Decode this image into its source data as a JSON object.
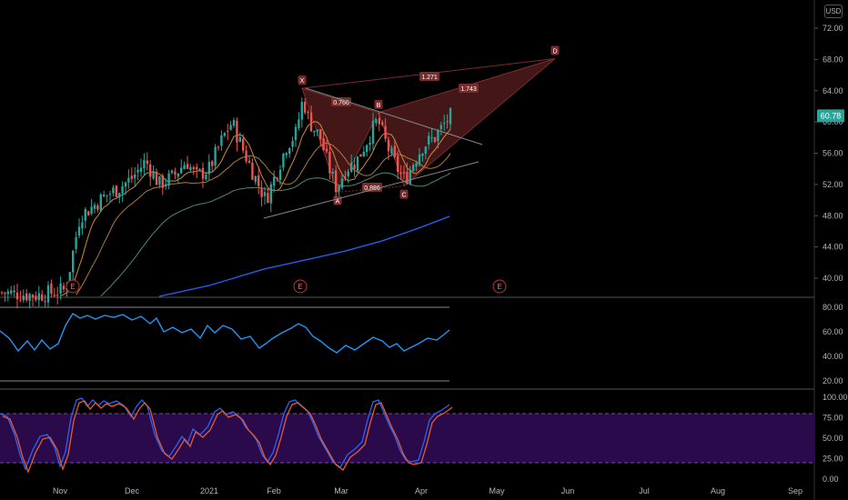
{
  "currency": "USD",
  "last_price": "60.78",
  "colors": {
    "up": "#26a69a",
    "down": "#ef5350",
    "pattern_fill": "#5a1f1f",
    "pattern_line": "#7a2b2b",
    "ma_orange": "#b07a3c",
    "ma_green": "#4d8a6a",
    "ma_blue": "#2962ff",
    "rsi": "#2196f3",
    "stoch_k": "#2962ff",
    "stoch_d": "#e55c2f",
    "stoch_band": "#2a0a4a",
    "price_tag": "#26a69a"
  },
  "price_axis": {
    "ticks": [
      "72.00",
      "68.00",
      "64.00",
      "60.00",
      "56.00",
      "52.00",
      "48.00",
      "44.00",
      "40.00"
    ]
  },
  "rsi_axis": {
    "ticks": [
      "80.00",
      "60.00",
      "40.00",
      "20.00"
    ]
  },
  "stoch_axis": {
    "ticks": [
      "100.00",
      "75.00",
      "50.00",
      "25.00",
      "0.00"
    ]
  },
  "time_axis": {
    "labels": [
      "Nov",
      "Dec",
      "2021",
      "Feb",
      "Mar",
      "Apr",
      "May",
      "Jun",
      "Jul",
      "Aug",
      "Sep"
    ]
  },
  "pattern": {
    "points": [
      "X",
      "A",
      "B",
      "C",
      "D"
    ],
    "ratios": [
      "0.766",
      "0.886",
      "1.271",
      "1.743"
    ]
  },
  "earnings_marker": "E",
  "chart_data": {
    "type": "candlestick",
    "price_range": [
      38,
      74
    ],
    "pattern_levels": {
      "X": 64.3,
      "A": 51.0,
      "B": 61.2,
      "C": 51.8,
      "D": 68.1
    },
    "last": 60.78,
    "rsi_range": [
      0,
      100
    ],
    "stoch_range": [
      0,
      100
    ],
    "stoch_band": [
      20,
      80
    ]
  }
}
